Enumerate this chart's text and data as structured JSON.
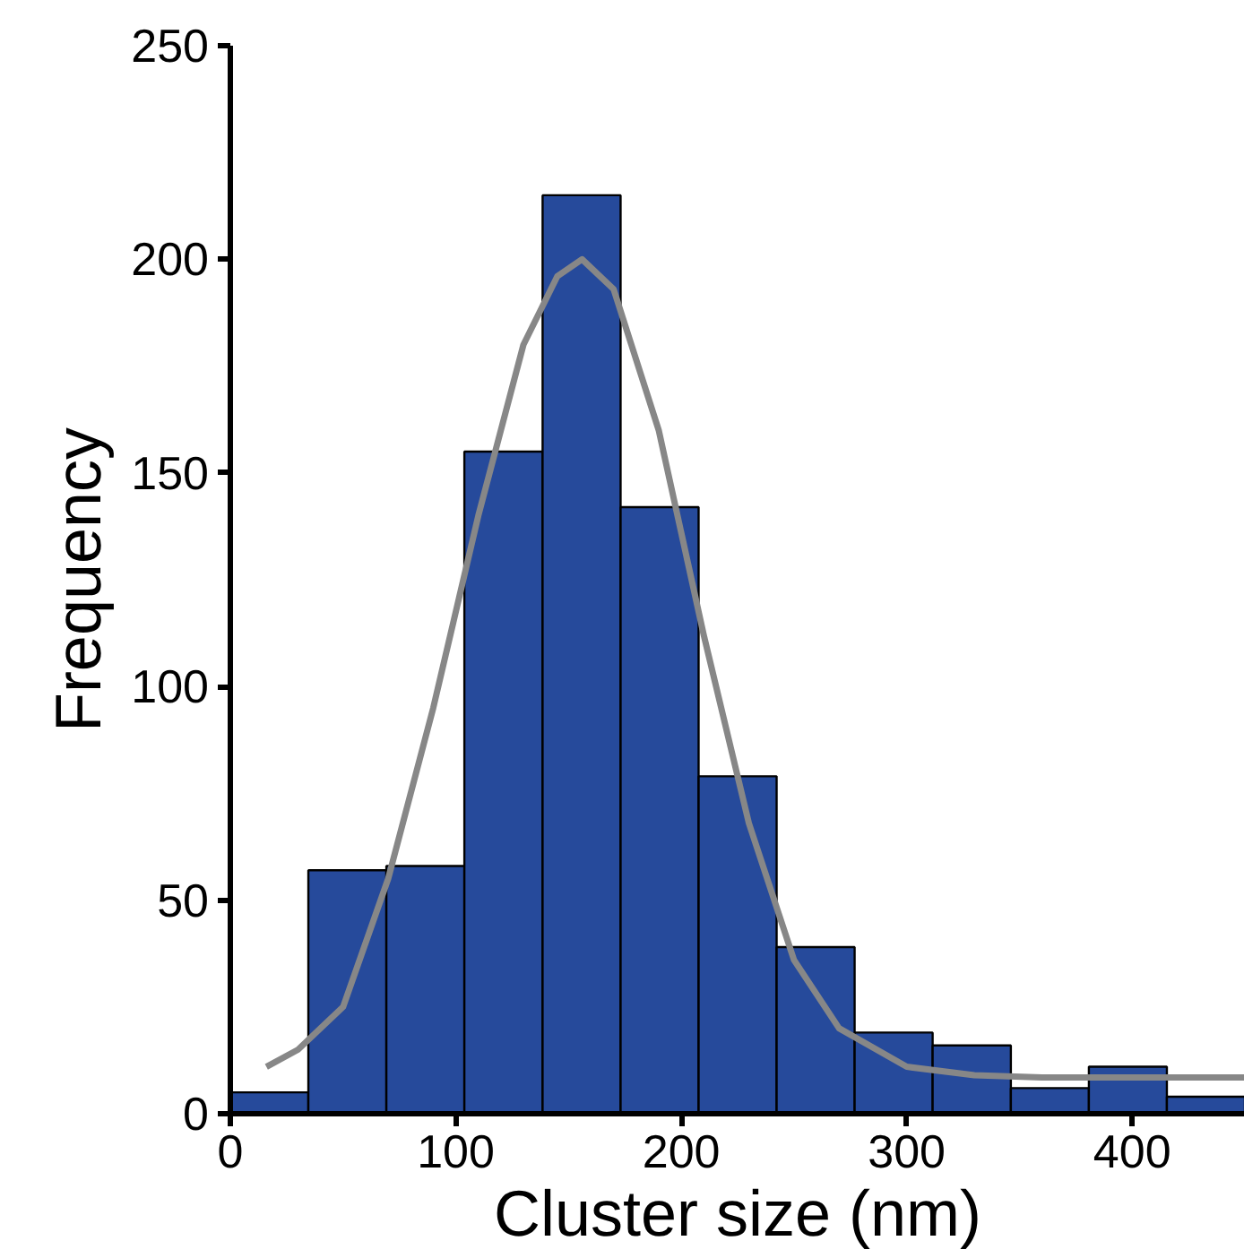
{
  "chart_data": {
    "type": "histogram",
    "xlabel": "Cluster size (nm)",
    "ylabel": "Frequency",
    "bins": [
      0,
      34.6,
      69.2,
      103.8,
      138.5,
      173.1,
      207.7,
      242.3,
      276.9,
      311.5,
      346.2,
      380.8,
      415.4,
      450
    ],
    "values": [
      5,
      57,
      58,
      155,
      215,
      142,
      79,
      39,
      19,
      16,
      6,
      11,
      4
    ],
    "color": "#264a9b",
    "series": [
      {
        "type": "line",
        "color": "#878787",
        "x": [
          16,
          30,
          50,
          70,
          90,
          110,
          130,
          145,
          156,
          170,
          190,
          210,
          230,
          250,
          270,
          300,
          330,
          360,
          400,
          450
        ],
        "values": [
          11,
          15,
          25,
          55,
          95,
          140,
          180,
          196,
          200,
          193,
          160,
          112,
          68,
          36,
          20,
          11,
          9,
          8.5,
          8.5,
          8.5
        ]
      }
    ],
    "xlim": [
      0,
      450
    ],
    "ylim": [
      0,
      250
    ],
    "xticks": [
      0,
      100,
      200,
      300,
      400
    ],
    "yticks": [
      0,
      50,
      100,
      150,
      200,
      250
    ],
    "grid": false
  }
}
